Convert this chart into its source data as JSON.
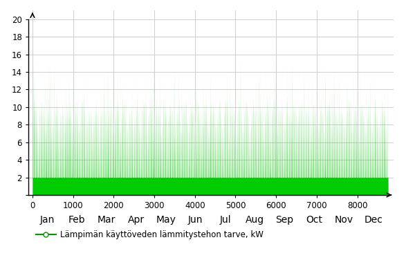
{
  "title": "",
  "xlabel": "",
  "ylabel": "",
  "xlim_min": -100,
  "xlim_max": 8900,
  "ylim": [
    0,
    21
  ],
  "yticks": [
    0,
    2,
    4,
    6,
    8,
    10,
    12,
    14,
    16,
    18,
    20
  ],
  "xticks": [
    0,
    1000,
    2000,
    3000,
    4000,
    5000,
    6000,
    7000,
    8000
  ],
  "month_positions": [
    365,
    1096,
    1826,
    2557,
    3287,
    4018,
    4748,
    5479,
    6209,
    6940,
    7670,
    8401
  ],
  "month_labels": [
    "Jan",
    "Feb",
    "Mar",
    "Apr",
    "May",
    "Jun",
    "Jul",
    "Aug",
    "Sep",
    "Oct",
    "Nov",
    "Dec"
  ],
  "fill_color": "#00CC00",
  "line_color": "#009900",
  "legend_label": "Lämpimän käyttöveden lämmitystehon tarve, kW",
  "background_color": "#ffffff",
  "grid_color": "#c8c8c8",
  "seed": 42,
  "n_hours": 8760
}
